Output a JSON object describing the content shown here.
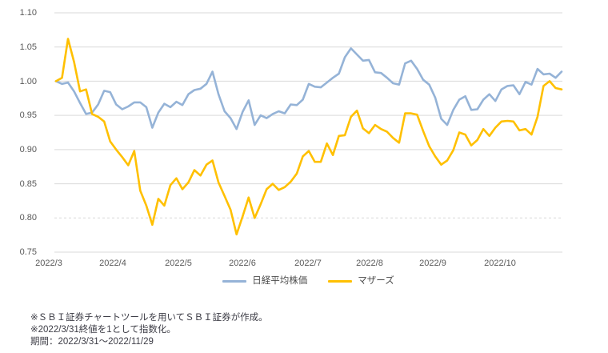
{
  "chart_data": {
    "type": "line",
    "title": "",
    "xlabel": "",
    "ylabel": "",
    "ylim": [
      0.75,
      1.1
    ],
    "grid": true,
    "legend_position": "bottom-center",
    "x_tick_labels": [
      "2022/3",
      "2022/4",
      "2022/5",
      "2022/6",
      "2022/7",
      "2022/8",
      "2022/9",
      "2022/10"
    ],
    "y_tick_labels": [
      "1.10",
      "1.05",
      "1.00",
      "0.95",
      "0.90",
      "0.85",
      "0.80",
      "0.75"
    ],
    "x_period": "2022/3/31 - 2022/11/29 (85 evenly spaced samples of daily closes, indexed to 1 at 2022/3/31)",
    "series": [
      {
        "name": "日経平均株価",
        "key": "nikkei-line",
        "color": "#95B3D7",
        "values": [
          1.0,
          0.996,
          0.998,
          0.985,
          0.968,
          0.952,
          0.954,
          0.966,
          0.986,
          0.984,
          0.966,
          0.959,
          0.963,
          0.969,
          0.969,
          0.962,
          0.932,
          0.954,
          0.967,
          0.962,
          0.97,
          0.965,
          0.981,
          0.987,
          0.989,
          0.996,
          1.014,
          0.981,
          0.956,
          0.946,
          0.93,
          0.955,
          0.972,
          0.936,
          0.95,
          0.946,
          0.952,
          0.956,
          0.953,
          0.966,
          0.965,
          0.973,
          0.996,
          0.992,
          0.991,
          0.998,
          1.005,
          1.011,
          1.035,
          1.048,
          1.039,
          1.03,
          1.031,
          1.013,
          1.012,
          1.005,
          0.997,
          0.995,
          1.026,
          1.03,
          1.018,
          1.002,
          0.995,
          0.976,
          0.945,
          0.936,
          0.958,
          0.973,
          0.978,
          0.958,
          0.959,
          0.973,
          0.981,
          0.971,
          0.988,
          0.993,
          0.994,
          0.981,
          0.999,
          0.995,
          1.018,
          1.01,
          1.011,
          1.005,
          1.014
        ]
      },
      {
        "name": "マザーズ",
        "key": "mothers-line",
        "color": "#FFC000",
        "values": [
          1.0,
          1.005,
          1.062,
          1.028,
          0.985,
          0.988,
          0.952,
          0.948,
          0.941,
          0.912,
          0.9,
          0.889,
          0.877,
          0.898,
          0.84,
          0.818,
          0.79,
          0.828,
          0.818,
          0.848,
          0.858,
          0.842,
          0.852,
          0.87,
          0.862,
          0.878,
          0.884,
          0.852,
          0.832,
          0.812,
          0.776,
          0.802,
          0.83,
          0.8,
          0.82,
          0.842,
          0.85,
          0.841,
          0.845,
          0.853,
          0.865,
          0.89,
          0.898,
          0.882,
          0.882,
          0.909,
          0.892,
          0.92,
          0.921,
          0.948,
          0.957,
          0.931,
          0.924,
          0.936,
          0.93,
          0.926,
          0.917,
          0.91,
          0.953,
          0.953,
          0.951,
          0.927,
          0.905,
          0.89,
          0.878,
          0.884,
          0.899,
          0.925,
          0.922,
          0.906,
          0.914,
          0.93,
          0.92,
          0.932,
          0.941,
          0.942,
          0.941,
          0.928,
          0.93,
          0.922,
          0.948,
          0.993,
          1.0,
          0.99,
          0.988
        ]
      }
    ],
    "gridline_color": "#d9d9d9",
    "dashed_gridline_value": 0.8
  },
  "footnotes": {
    "line1": "※ＳＢＩ証券チャートツールを用いてＳＢＩ証券が作成。",
    "line2": "※2022/3/31終値を1として指数化。",
    "line3": "期間：2022/3/31～2022/11/29"
  }
}
